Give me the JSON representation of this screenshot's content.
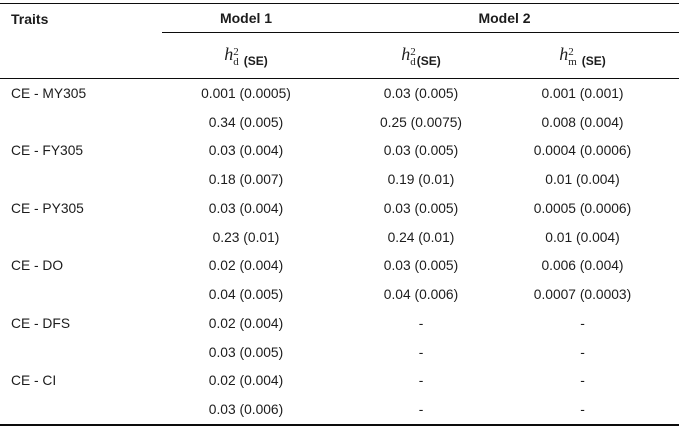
{
  "page": {
    "background": "#ffffff",
    "text_color": "#1c1c1c",
    "rule_color": "#0c0c0c"
  },
  "table": {
    "header": {
      "traits": "Traits",
      "model1": "Model 1",
      "model2": "Model 2",
      "subcolumns": [
        {
          "base": "h",
          "sup": "2",
          "sub": "d",
          "se": "(SE)"
        },
        {
          "base": "h",
          "sup": "2",
          "sub": "d",
          "se": "(SE)"
        },
        {
          "base": "h",
          "sup": "2",
          "sub": "m",
          "se": "(SE)"
        }
      ]
    },
    "rows": [
      {
        "trait": "CE - MY305",
        "m1_hd2": "0.001 (0.0005)",
        "m2_hd2": "0.03 (0.005)",
        "m2_hm2": "0.001 (0.001)"
      },
      {
        "trait": "",
        "m1_hd2": "0.34 (0.005)",
        "m2_hd2": "0.25 (0.0075)",
        "m2_hm2": "0.008 (0.004)"
      },
      {
        "trait": "CE - FY305",
        "m1_hd2": "0.03 (0.004)",
        "m2_hd2": "0.03 (0.005)",
        "m2_hm2": "0.0004 (0.0006)"
      },
      {
        "trait": "",
        "m1_hd2": "0.18 (0.007)",
        "m2_hd2": "0.19 (0.01)",
        "m2_hm2": "0.01 (0.004)"
      },
      {
        "trait": "CE - PY305",
        "m1_hd2": "0.03 (0.004)",
        "m2_hd2": "0.03 (0.005)",
        "m2_hm2": "0.0005 (0.0006)"
      },
      {
        "trait": "",
        "m1_hd2": "0.23 (0.01)",
        "m2_hd2": "0.24 (0.01)",
        "m2_hm2": "0.01 (0.004)"
      },
      {
        "trait": "CE - DO",
        "m1_hd2": "0.02 (0.004)",
        "m2_hd2": "0.03 (0.005)",
        "m2_hm2": "0.006 (0.004)"
      },
      {
        "trait": "",
        "m1_hd2": "0.04 (0.005)",
        "m2_hd2": "0.04 (0.006)",
        "m2_hm2": "0.0007 (0.0003)"
      },
      {
        "trait": "CE - DFS",
        "m1_hd2": "0.02 (0.004)",
        "m2_hd2": "-",
        "m2_hm2": "-"
      },
      {
        "trait": "",
        "m1_hd2": "0.03 (0.005)",
        "m2_hd2": "-",
        "m2_hm2": "-"
      },
      {
        "trait": "CE - CI",
        "m1_hd2": "0.02 (0.004)",
        "m2_hd2": "-",
        "m2_hm2": "-"
      },
      {
        "trait": "",
        "m1_hd2": "0.03 (0.006)",
        "m2_hd2": "-",
        "m2_hm2": "-"
      }
    ]
  }
}
